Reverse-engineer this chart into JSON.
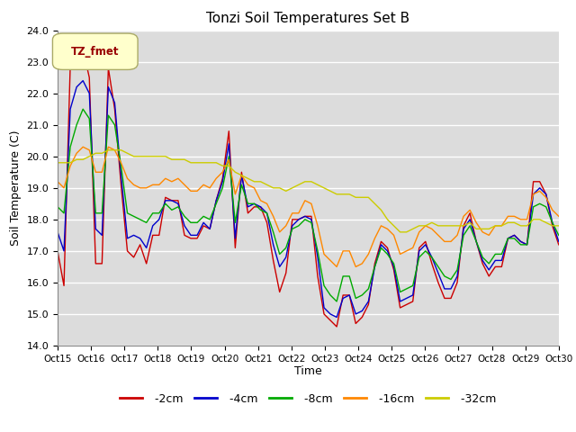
{
  "title": "Tonzi Soil Temperatures Set B",
  "xlabel": "Time",
  "ylabel": "Soil Temperature (C)",
  "ylim": [
    14.0,
    24.0
  ],
  "yticks": [
    14.0,
    15.0,
    16.0,
    17.0,
    18.0,
    19.0,
    20.0,
    21.0,
    22.0,
    23.0,
    24.0
  ],
  "xtick_labels": [
    "Oct 15",
    "Oct 16",
    "Oct 17",
    "Oct 18",
    "Oct 19",
    "Oct 20",
    "Oct 21",
    "Oct 22",
    "Oct 23",
    "Oct 24",
    "Oct 25",
    "Oct 26",
    "Oct 27",
    "Oct 28",
    "Oct 29",
    "Oct 30"
  ],
  "colors": {
    "-2cm": "#cc0000",
    "-4cm": "#0000cc",
    "-8cm": "#00aa00",
    "-16cm": "#ff8800",
    "-32cm": "#cccc00"
  },
  "legend_label": "TZ_fmet",
  "legend_box_facecolor": "#ffffcc",
  "legend_box_edgecolor": "#aaaa66",
  "legend_text_color": "#990000",
  "background_color": "#dcdcdc",
  "grid_color": "#ffffff",
  "series": {
    "-2cm": [
      17.0,
      15.9,
      22.9,
      23.5,
      23.4,
      22.5,
      16.6,
      16.6,
      22.8,
      21.5,
      19.1,
      17.0,
      16.8,
      17.2,
      16.6,
      17.5,
      17.5,
      18.7,
      18.6,
      18.6,
      17.5,
      17.4,
      17.4,
      17.8,
      17.7,
      18.6,
      19.3,
      20.8,
      17.1,
      19.5,
      18.2,
      18.4,
      18.4,
      17.9,
      16.7,
      15.7,
      16.3,
      18.0,
      18.0,
      18.1,
      18.1,
      16.2,
      15.0,
      14.8,
      14.6,
      15.6,
      15.6,
      14.7,
      14.9,
      15.3,
      16.6,
      17.3,
      17.1,
      16.4,
      15.2,
      15.3,
      15.4,
      17.1,
      17.3,
      16.6,
      16.0,
      15.5,
      15.5,
      16.0,
      17.8,
      18.2,
      17.3,
      16.6,
      16.2,
      16.5,
      16.5,
      17.4,
      17.5,
      17.3,
      17.2,
      19.2,
      19.2,
      18.8,
      17.8,
      17.2
    ],
    "-4cm": [
      17.6,
      17.0,
      21.5,
      22.2,
      22.4,
      22.0,
      17.7,
      17.5,
      22.2,
      21.7,
      19.4,
      17.4,
      17.5,
      17.4,
      17.1,
      17.8,
      18.0,
      18.6,
      18.6,
      18.5,
      17.8,
      17.5,
      17.5,
      17.9,
      17.7,
      18.6,
      19.2,
      20.4,
      17.4,
      19.4,
      18.4,
      18.5,
      18.4,
      18.2,
      17.2,
      16.5,
      16.8,
      17.8,
      18.0,
      18.1,
      18.0,
      16.8,
      15.2,
      15.0,
      14.9,
      15.5,
      15.6,
      15.0,
      15.1,
      15.4,
      16.5,
      17.2,
      17.0,
      16.5,
      15.4,
      15.5,
      15.6,
      17.0,
      17.2,
      16.8,
      16.3,
      15.8,
      15.8,
      16.2,
      17.7,
      18.0,
      17.3,
      16.7,
      16.4,
      16.7,
      16.7,
      17.4,
      17.5,
      17.3,
      17.2,
      18.8,
      19.0,
      18.8,
      17.9,
      17.3
    ],
    "-8cm": [
      18.4,
      18.2,
      20.3,
      21.0,
      21.5,
      21.2,
      18.2,
      18.2,
      21.3,
      21.0,
      19.7,
      18.2,
      18.1,
      18.0,
      17.9,
      18.2,
      18.2,
      18.5,
      18.3,
      18.4,
      18.1,
      17.9,
      17.9,
      18.1,
      18.0,
      18.5,
      19.0,
      20.0,
      17.9,
      19.1,
      18.5,
      18.5,
      18.3,
      18.2,
      17.6,
      16.9,
      17.1,
      17.7,
      17.8,
      18.0,
      17.9,
      17.0,
      15.9,
      15.6,
      15.4,
      16.2,
      16.2,
      15.5,
      15.6,
      15.8,
      16.5,
      17.1,
      16.9,
      16.6,
      15.7,
      15.8,
      15.9,
      16.8,
      17.0,
      16.8,
      16.5,
      16.2,
      16.1,
      16.4,
      17.5,
      17.8,
      17.3,
      16.8,
      16.6,
      16.9,
      16.9,
      17.4,
      17.4,
      17.2,
      17.2,
      18.4,
      18.5,
      18.4,
      17.9,
      17.5
    ],
    "-16cm": [
      19.2,
      19.0,
      19.7,
      20.1,
      20.3,
      20.2,
      19.5,
      19.5,
      20.3,
      20.2,
      19.8,
      19.3,
      19.1,
      19.0,
      19.0,
      19.1,
      19.1,
      19.3,
      19.2,
      19.3,
      19.1,
      18.9,
      18.9,
      19.1,
      19.0,
      19.3,
      19.5,
      19.9,
      18.8,
      19.4,
      19.1,
      19.0,
      18.6,
      18.5,
      18.1,
      17.6,
      17.8,
      18.2,
      18.2,
      18.6,
      18.5,
      17.8,
      16.9,
      16.7,
      16.5,
      17.0,
      17.0,
      16.5,
      16.6,
      16.9,
      17.4,
      17.8,
      17.7,
      17.5,
      16.9,
      17.0,
      17.1,
      17.6,
      17.8,
      17.7,
      17.5,
      17.3,
      17.3,
      17.5,
      18.1,
      18.3,
      17.9,
      17.6,
      17.5,
      17.8,
      17.8,
      18.1,
      18.1,
      18.0,
      18.0,
      18.8,
      18.9,
      18.7,
      18.3,
      18.1
    ],
    "-32cm": [
      19.8,
      19.8,
      19.8,
      19.9,
      19.9,
      20.0,
      20.1,
      20.1,
      20.2,
      20.2,
      20.2,
      20.1,
      20.0,
      20.0,
      20.0,
      20.0,
      20.0,
      20.0,
      19.9,
      19.9,
      19.9,
      19.8,
      19.8,
      19.8,
      19.8,
      19.8,
      19.7,
      19.7,
      19.5,
      19.4,
      19.3,
      19.2,
      19.2,
      19.1,
      19.0,
      19.0,
      18.9,
      19.0,
      19.1,
      19.2,
      19.2,
      19.1,
      19.0,
      18.9,
      18.8,
      18.8,
      18.8,
      18.7,
      18.7,
      18.7,
      18.5,
      18.3,
      18.0,
      17.8,
      17.6,
      17.6,
      17.7,
      17.8,
      17.8,
      17.9,
      17.8,
      17.8,
      17.8,
      17.8,
      17.8,
      17.9,
      17.7,
      17.7,
      17.7,
      17.8,
      17.8,
      17.9,
      17.9,
      17.8,
      17.8,
      18.0,
      18.0,
      17.9,
      17.8,
      17.8
    ]
  }
}
